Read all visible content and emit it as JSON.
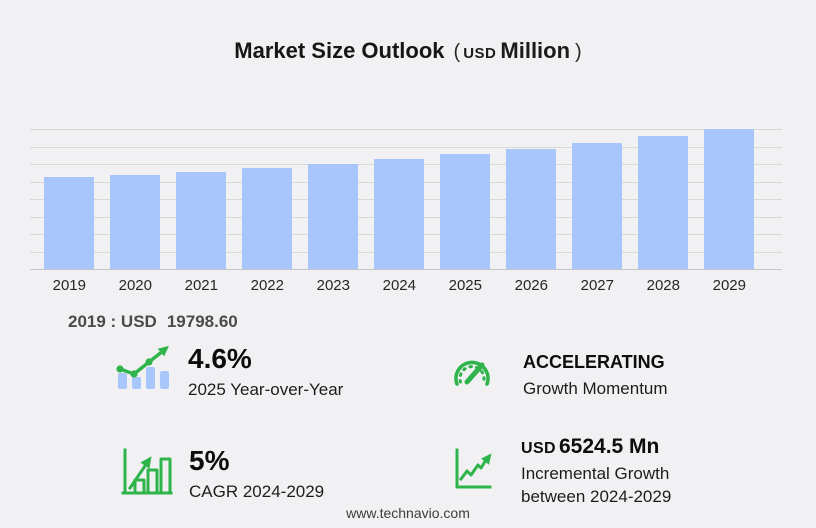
{
  "title": {
    "main": "Market Size Outlook",
    "paren_open": "(",
    "unit_prefix": "USD",
    "unit": "Million",
    "paren_close": ")"
  },
  "chart_data": {
    "type": "bar",
    "title": "Market Size Outlook (USD Million)",
    "unit": "USD Million",
    "categories": [
      "2019",
      "2020",
      "2021",
      "2022",
      "2023",
      "2024",
      "2025",
      "2026",
      "2027",
      "2028",
      "2029"
    ],
    "values": [
      19798.6,
      20310,
      20935,
      21745,
      22655,
      23615.4,
      24701.7,
      25880,
      27135,
      28565,
      30139.9
    ],
    "labeled_point": {
      "year": "2019",
      "label": "2019 : USD  19798.60"
    },
    "xlabel": "",
    "ylabel": "",
    "ylim": [
      0,
      30140
    ],
    "gridlines": 9,
    "grid": true,
    "legend": false
  },
  "baseline_note": {
    "label": "2019 : USD",
    "value": "19798.60"
  },
  "stats": [
    {
      "icon": "trend-line-bars-icon",
      "value": "4.6%",
      "label": "2025 Year-over-Year"
    },
    {
      "icon": "gauge-icon",
      "value": "ACCELERATING",
      "label": "Growth Momentum"
    },
    {
      "icon": "bar-chart-growth-icon",
      "value": "5%",
      "label": "CAGR 2024-2029"
    },
    {
      "icon": "axis-growth-arrow-icon",
      "value_prefix": "USD",
      "value": "6524.5 Mn",
      "label": "Incremental Growth between 2024-2029"
    }
  ],
  "footer": {
    "url": "www.technavio.com"
  },
  "colors": {
    "background": "#f1f1f3",
    "bar": "#a8c6fa",
    "grid": "#d9d9da",
    "green": "#2eb44a",
    "title_text": "#161616",
    "note_text": "#4b4b4b"
  }
}
